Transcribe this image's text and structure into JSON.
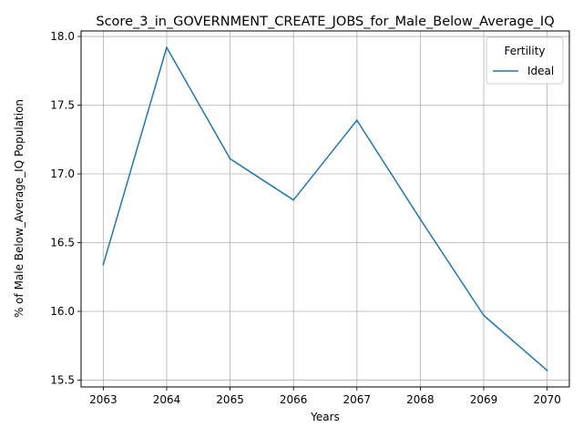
{
  "chart_data": {
    "type": "line",
    "title": "Score_3_in_GOVERNMENT_CREATE_JOBS_for_Male_Below_Average_IQ",
    "xlabel": "Years",
    "ylabel": "% of Male Below_Average_IQ Population",
    "x": [
      2063,
      2064,
      2065,
      2066,
      2067,
      2068,
      2069,
      2070
    ],
    "x_ticks": [
      "2063",
      "2064",
      "2065",
      "2066",
      "2067",
      "2068",
      "2069",
      "2070"
    ],
    "y_ticks": [
      "15.5",
      "16.0",
      "16.5",
      "17.0",
      "17.5",
      "18.0"
    ],
    "xlim": [
      2062.65,
      2070.35
    ],
    "ylim": [
      15.45,
      18.04
    ],
    "grid": true,
    "legend": {
      "title": "Fertility",
      "position": "top-right"
    },
    "series": [
      {
        "name": "Ideal",
        "color": "#1f77b4",
        "values": [
          16.34,
          17.92,
          17.11,
          16.81,
          17.39,
          16.67,
          15.97,
          15.57
        ]
      }
    ]
  }
}
